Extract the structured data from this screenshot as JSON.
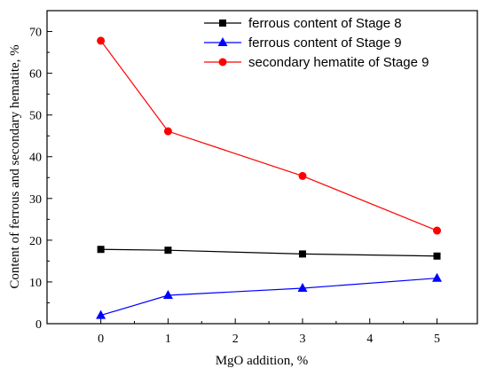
{
  "chart_data": {
    "type": "line",
    "title": "",
    "xlabel": "MgO addition, %",
    "ylabel": "Content of ferrous and secondary hematite, %",
    "xlim": [
      -0.8,
      5.6
    ],
    "ylim": [
      0,
      75
    ],
    "xticks": [
      0,
      1,
      2,
      3,
      4,
      5
    ],
    "yticks": [
      0,
      10,
      20,
      30,
      40,
      50,
      60,
      70
    ],
    "grid": false,
    "legend_position": "top-right",
    "series": [
      {
        "name": "ferrous content of Stage 8",
        "color": "#000000",
        "marker": "square",
        "x": [
          0,
          1,
          3,
          5
        ],
        "y": [
          17.8,
          17.6,
          16.7,
          16.2
        ]
      },
      {
        "name": "ferrous content of Stage 9",
        "color": "#0000ff",
        "marker": "triangle",
        "x": [
          0,
          1,
          3,
          5
        ],
        "y": [
          2.0,
          6.8,
          8.5,
          10.9
        ]
      },
      {
        "name": "secondary hematite of Stage 9",
        "color": "#ff0000",
        "marker": "circle",
        "x": [
          0,
          1,
          3,
          5
        ],
        "y": [
          67.8,
          46.1,
          35.4,
          22.3
        ]
      }
    ]
  }
}
